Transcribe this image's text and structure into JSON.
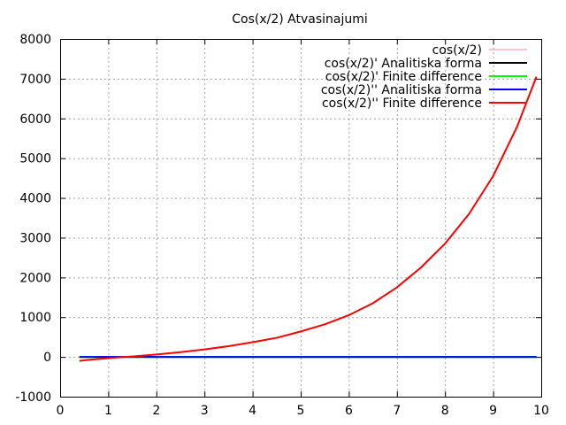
{
  "chart_data": {
    "type": "line",
    "title": "Cos(x/2) Atvasinajumi",
    "xlabel": "",
    "ylabel": "",
    "xlim": [
      0,
      10
    ],
    "ylim": [
      -1000,
      8000
    ],
    "x_ticks": [
      0,
      1,
      2,
      3,
      4,
      5,
      6,
      7,
      8,
      9,
      10
    ],
    "y_ticks": [
      -1000,
      0,
      1000,
      2000,
      3000,
      4000,
      5000,
      6000,
      7000,
      8000
    ],
    "grid": true,
    "legend_position": "top-right",
    "series": [
      {
        "name": "cos(x/2)",
        "color": "#ffc0cb",
        "x": [
          0.4,
          9.9
        ],
        "y": [
          0.98,
          0.24
        ]
      },
      {
        "name": "cos(x/2)' Analitiska forma",
        "color": "#000000",
        "x": [
          0.4,
          9.9
        ],
        "y": [
          -0.1,
          0.49
        ]
      },
      {
        "name": "cos(x/2)' Finite difference",
        "color": "#00ff00",
        "x": [
          0.4,
          9.9
        ],
        "y": [
          -0.1,
          0.49
        ]
      },
      {
        "name": "cos(x/2)'' Analitiska forma",
        "color": "#0000ff",
        "x": [
          0.4,
          9.9
        ],
        "y": [
          -0.25,
          -0.06
        ]
      },
      {
        "name": "cos(x/2)'' Finite difference",
        "color": "#ff0000",
        "x": [
          0.4,
          0.5,
          1,
          1.5,
          2,
          2.5,
          3,
          3.5,
          4,
          4.5,
          5,
          5.5,
          6,
          6.5,
          7,
          7.5,
          8,
          8.5,
          9,
          9.5,
          9.9
        ],
        "y": [
          -100,
          -85,
          -30,
          10,
          60,
          120,
          190,
          270,
          370,
          480,
          640,
          820,
          1050,
          1350,
          1750,
          2250,
          2850,
          3600,
          4550,
          5800,
          7050
        ]
      }
    ]
  }
}
